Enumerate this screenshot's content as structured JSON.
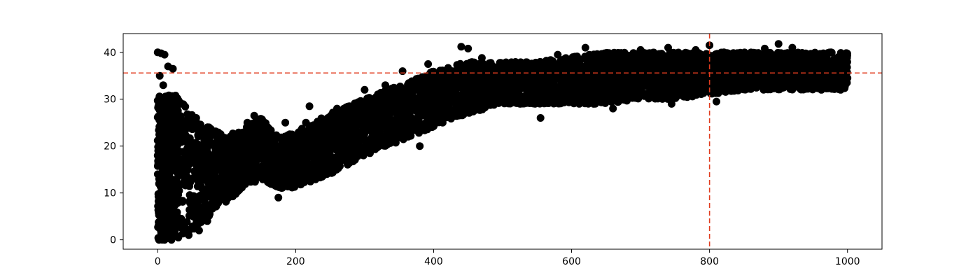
{
  "chart_data": {
    "type": "scatter",
    "title": "",
    "xlabel": "",
    "ylabel": "",
    "xlim": [
      -50,
      1050
    ],
    "ylim": [
      -2,
      44
    ],
    "x_ticks": [
      0,
      200,
      400,
      600,
      800,
      1000
    ],
    "y_ticks": [
      0,
      10,
      20,
      30,
      40
    ],
    "grid": false,
    "legend": "none",
    "marker_color": "#000000",
    "reference_lines": [
      {
        "orientation": "horizontal",
        "value": 35.6,
        "color": "#e03c1f",
        "style": "dashed"
      },
      {
        "orientation": "vertical",
        "value": 800,
        "color": "#e03c1f",
        "style": "dashed"
      }
    ],
    "series": [
      {
        "trend": [
          {
            "x": 0,
            "low": 0,
            "high": 40
          },
          {
            "x": 25,
            "low": 0,
            "high": 31
          },
          {
            "x": 50,
            "low": 2,
            "high": 27
          },
          {
            "x": 75,
            "low": 5,
            "high": 24
          },
          {
            "x": 100,
            "low": 8,
            "high": 22
          },
          {
            "x": 125,
            "low": 11,
            "high": 24
          },
          {
            "x": 150,
            "low": 13,
            "high": 26
          },
          {
            "x": 175,
            "low": 11,
            "high": 22
          },
          {
            "x": 200,
            "low": 11,
            "high": 23
          },
          {
            "x": 250,
            "low": 14,
            "high": 27
          },
          {
            "x": 300,
            "low": 18,
            "high": 30
          },
          {
            "x": 350,
            "low": 21,
            "high": 33
          },
          {
            "x": 400,
            "low": 24,
            "high": 36
          },
          {
            "x": 450,
            "low": 27,
            "high": 38
          },
          {
            "x": 500,
            "low": 29,
            "high": 38
          },
          {
            "x": 550,
            "low": 29,
            "high": 38
          },
          {
            "x": 600,
            "low": 29,
            "high": 39
          },
          {
            "x": 650,
            "low": 29,
            "high": 40
          },
          {
            "x": 700,
            "low": 30,
            "high": 40
          },
          {
            "x": 750,
            "low": 30,
            "high": 40
          },
          {
            "x": 800,
            "low": 31,
            "high": 40
          },
          {
            "x": 850,
            "low": 32,
            "high": 40
          },
          {
            "x": 900,
            "low": 32,
            "high": 40
          },
          {
            "x": 950,
            "low": 32,
            "high": 40
          },
          {
            "x": 1000,
            "low": 32,
            "high": 40
          }
        ],
        "points": [
          {
            "x": 0,
            "y": 40
          },
          {
            "x": 5,
            "y": 39.8
          },
          {
            "x": 10,
            "y": 39.5
          },
          {
            "x": 3,
            "y": 35
          },
          {
            "x": 15,
            "y": 37
          },
          {
            "x": 22,
            "y": 36.5
          },
          {
            "x": 8,
            "y": 33
          },
          {
            "x": 2,
            "y": 0
          },
          {
            "x": 10,
            "y": 0
          },
          {
            "x": 20,
            "y": 0
          },
          {
            "x": 30,
            "y": 0.5
          },
          {
            "x": 45,
            "y": 1
          },
          {
            "x": 60,
            "y": 2
          },
          {
            "x": 72,
            "y": 4
          },
          {
            "x": 100,
            "y": 12
          },
          {
            "x": 130,
            "y": 25
          },
          {
            "x": 140,
            "y": 26.5
          },
          {
            "x": 175,
            "y": 9
          },
          {
            "x": 185,
            "y": 25
          },
          {
            "x": 215,
            "y": 25
          },
          {
            "x": 220,
            "y": 28.5
          },
          {
            "x": 260,
            "y": 28
          },
          {
            "x": 300,
            "y": 32
          },
          {
            "x": 330,
            "y": 33
          },
          {
            "x": 355,
            "y": 36
          },
          {
            "x": 380,
            "y": 20
          },
          {
            "x": 392,
            "y": 37.5
          },
          {
            "x": 440,
            "y": 41.2
          },
          {
            "x": 450,
            "y": 40.8
          },
          {
            "x": 470,
            "y": 38.8
          },
          {
            "x": 555,
            "y": 26
          },
          {
            "x": 580,
            "y": 39.5
          },
          {
            "x": 620,
            "y": 41
          },
          {
            "x": 660,
            "y": 28
          },
          {
            "x": 700,
            "y": 40.5
          },
          {
            "x": 740,
            "y": 41
          },
          {
            "x": 745,
            "y": 29
          },
          {
            "x": 780,
            "y": 40.5
          },
          {
            "x": 800,
            "y": 41.5
          },
          {
            "x": 810,
            "y": 29.5
          },
          {
            "x": 880,
            "y": 40.8
          },
          {
            "x": 900,
            "y": 41.8
          },
          {
            "x": 920,
            "y": 41
          },
          {
            "x": 965,
            "y": 39.8
          },
          {
            "x": 990,
            "y": 32
          }
        ]
      }
    ]
  }
}
